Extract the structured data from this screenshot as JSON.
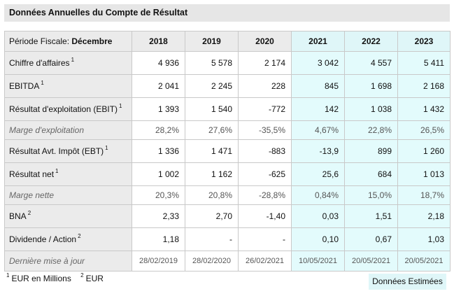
{
  "title": "Données Annuelles du Compte de Résultat",
  "period_label": "Période Fiscale: ",
  "period_value": "Décembre",
  "years": [
    "2018",
    "2019",
    "2020",
    "2021",
    "2022",
    "2023"
  ],
  "estimated_from_index": 3,
  "rows": [
    {
      "label": "Chiffre d'affaires",
      "note": "1",
      "sub": false,
      "values": [
        "4 936",
        "5 578",
        "2 174",
        "3 042",
        "4 557",
        "5 411"
      ]
    },
    {
      "label": "EBITDA",
      "note": "1",
      "sub": false,
      "values": [
        "2 041",
        "2 245",
        "228",
        "845",
        "1 698",
        "2 168"
      ]
    },
    {
      "label": "Résultat d'exploitation (EBIT)",
      "note": "1",
      "sub": false,
      "values": [
        "1 393",
        "1 540",
        "-772",
        "142",
        "1 038",
        "1 432"
      ]
    },
    {
      "label": "Marge d'exploitation",
      "note": "",
      "sub": true,
      "values": [
        "28,2%",
        "27,6%",
        "-35,5%",
        "4,67%",
        "22,8%",
        "26,5%"
      ]
    },
    {
      "label": "Résultat Avt. Impôt (EBT)",
      "note": "1",
      "sub": false,
      "values": [
        "1 336",
        "1 471",
        "-883",
        "-13,9",
        "899",
        "1 260"
      ]
    },
    {
      "label": "Résultat net",
      "note": "1",
      "sub": false,
      "values": [
        "1 002",
        "1 162",
        "-625",
        "25,6",
        "684",
        "1 013"
      ]
    },
    {
      "label": "Marge nette",
      "note": "",
      "sub": true,
      "values": [
        "20,3%",
        "20,8%",
        "-28,8%",
        "0,84%",
        "15,0%",
        "18,7%"
      ]
    },
    {
      "label": "BNA",
      "note": "2",
      "sub": false,
      "values": [
        "2,33",
        "2,70",
        "-1,40",
        "0,03",
        "1,51",
        "2,18"
      ]
    },
    {
      "label": "Dividende / Action",
      "note": "2",
      "sub": false,
      "values": [
        "1,18",
        "-",
        "-",
        "0,10",
        "0,67",
        "1,03"
      ]
    }
  ],
  "last_update": {
    "label": "Dernière mise à jour",
    "values": [
      "28/02/2019",
      "28/02/2020",
      "26/02/2021",
      "10/05/2021",
      "20/05/2021",
      "20/05/2021"
    ]
  },
  "footnotes": [
    {
      "mark": "1",
      "text": "EUR en Millions"
    },
    {
      "mark": "2",
      "text": "EUR"
    }
  ],
  "estimated_label": "Données Estimées",
  "colors": {
    "estimated_bg": "#e3fbfc",
    "header_bg": "#ebebeb",
    "border": "#c9c9c9"
  }
}
